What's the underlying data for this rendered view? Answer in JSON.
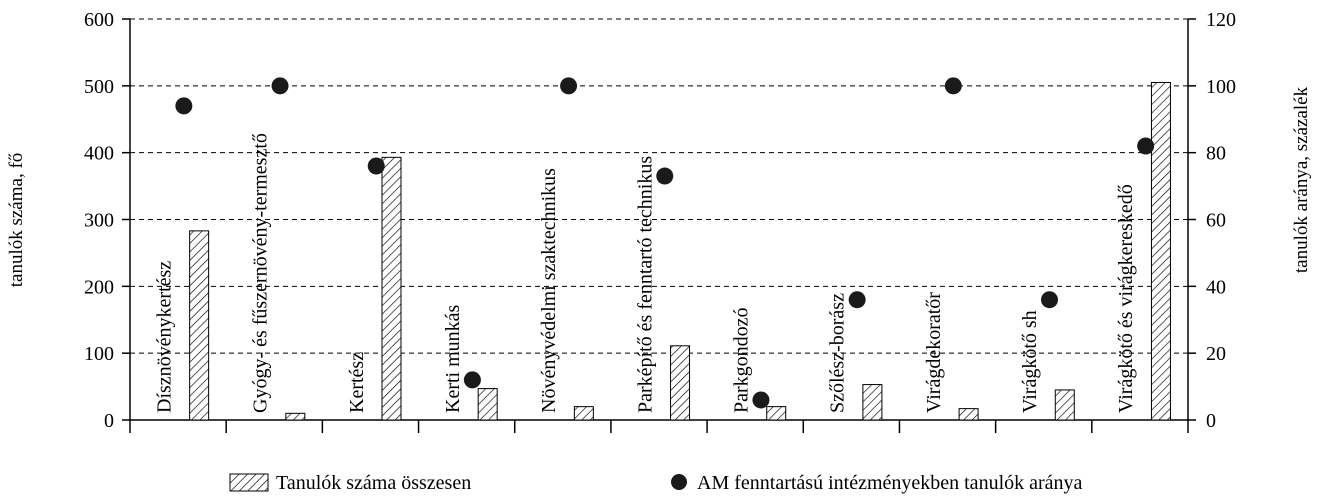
{
  "chart_data": {
    "type": "bar",
    "categories": [
      "Dísznövénykertész",
      "Gyógy- és fűszernövény-termesztő",
      "Kertész",
      "Kerti munkás",
      "Növényvédelmi szaktechnikus",
      "Parképítő és fenntartó technikus",
      "Parkgondozó",
      "Szőlész-borász",
      "Virágdekoratőr",
      "Virágkötő  sh",
      "Virágkötő és virágkereskedő"
    ],
    "series": [
      {
        "name": "Tanulók száma összesen",
        "type": "bar",
        "axis": "left",
        "values": [
          283,
          10,
          393,
          47,
          20,
          111,
          20,
          53,
          17,
          45,
          505
        ]
      },
      {
        "name": "AM fenntartású intézményekben tanulók aránya",
        "type": "scatter",
        "axis": "right",
        "values": [
          94,
          100,
          76,
          12,
          100,
          73,
          6,
          36,
          100,
          36,
          82
        ]
      }
    ],
    "ylabel": "tanulók száma, fő",
    "ylabel_right": "tanulók aránya, százalék",
    "ylim": [
      0,
      600
    ],
    "ylim_right": [
      0,
      120
    ],
    "yticks": [
      "0",
      "100",
      "200",
      "300",
      "400",
      "500",
      "600"
    ],
    "yticks_right": [
      "0",
      "20",
      "40",
      "60",
      "80",
      "100",
      "120"
    ],
    "grid": "horizontal dashed",
    "legend": "bottom"
  }
}
